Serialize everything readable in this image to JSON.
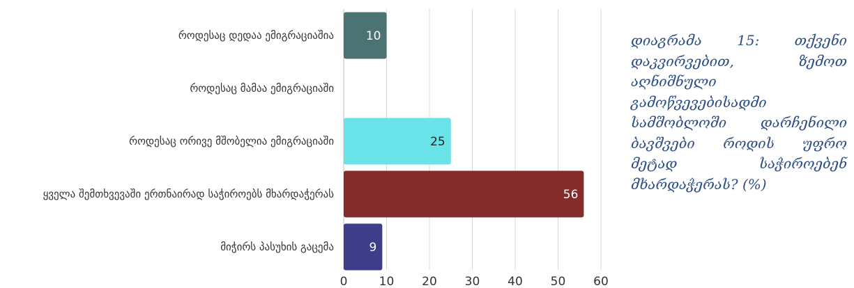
{
  "caption": "დიაგრამა 15: თქვენი დაკვირვებით, ზემოთ აღნიშნული გამოწვევებისადმი სამშობლოში დარჩენილი ბავშვები როდის უფრო მეტად საჭიროებენ მხარდაჭერას? (%)",
  "chart_data": {
    "type": "bar",
    "orientation": "horizontal",
    "categories": [
      "როდესაც დედაა ემიგრაციაშია",
      "როდესაც მამაა ემიგრაციაში",
      "როდესაც ორივე მშობელია ემიგრაციაში",
      "ყველა შემთხვევაში ერთნაირად საჭიროებს მხარდაჭერას",
      "მიჭირს პასუხის გაცემა"
    ],
    "values": [
      10,
      0,
      25,
      56,
      9
    ],
    "value_labels": [
      "10",
      "",
      "25",
      "56",
      "9"
    ],
    "colors": [
      "#4b7373",
      "#7f7f7f",
      "#6ae3e8",
      "#842c2c",
      "#3d3d8a"
    ],
    "label_colors": [
      "#ffffff",
      "#ffffff",
      "#222222",
      "#ffffff",
      "#ffffff"
    ],
    "xlim": [
      0,
      60
    ],
    "xticks": [
      "0",
      "10",
      "20",
      "30",
      "40",
      "50",
      "60"
    ],
    "grid": "vertical",
    "legend": "none"
  }
}
